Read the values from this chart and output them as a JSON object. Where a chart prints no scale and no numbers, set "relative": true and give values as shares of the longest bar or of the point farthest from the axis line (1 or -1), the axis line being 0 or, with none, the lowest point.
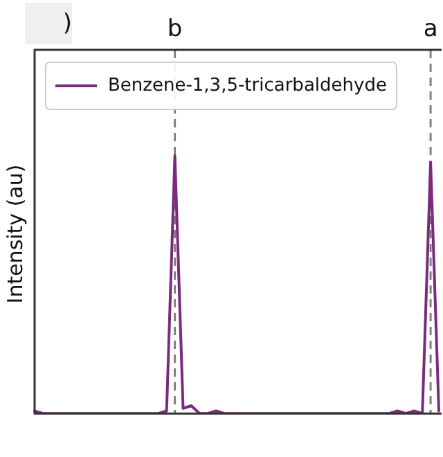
{
  "chart_data": {
    "type": "line",
    "ylabel": "Intensity (au)",
    "relative": true,
    "grid": false,
    "legend": "top left",
    "marker": "none",
    "line_style": "solid",
    "categories": [
      null,
      null,
      null,
      null,
      null,
      null,
      null,
      null,
      null,
      null,
      null,
      null,
      null,
      null,
      null,
      null,
      null,
      null,
      null,
      null,
      null,
      null,
      null,
      null,
      null,
      null,
      null,
      null,
      null,
      null,
      null,
      null,
      null,
      null,
      null,
      null,
      null,
      null,
      null,
      null,
      null,
      null,
      null,
      null,
      null,
      null,
      null,
      null,
      null,
      null
    ],
    "series": [
      {
        "name": "Benzene-1,3,5-tricarbaldehyde",
        "color": "#7b2a7e",
        "values": [
          0.01,
          0,
          0,
          0,
          0,
          0,
          0,
          0,
          0,
          0,
          0,
          0,
          0,
          0,
          0,
          0,
          0.01,
          1,
          0.02,
          0.03,
          0,
          0,
          0.01,
          0,
          0,
          0,
          0,
          0,
          0,
          0,
          0,
          0,
          0,
          0,
          0,
          0,
          0,
          0,
          0,
          0,
          0,
          0,
          0,
          0,
          0.01,
          0,
          0.01,
          0,
          0.975,
          0.01
        ]
      }
    ],
    "annotations": [
      ")",
      "b",
      "a"
    ]
  }
}
